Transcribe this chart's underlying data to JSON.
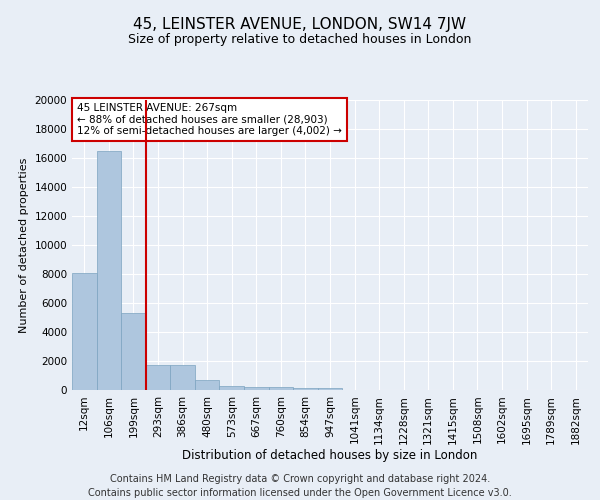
{
  "title": "45, LEINSTER AVENUE, LONDON, SW14 7JW",
  "subtitle": "Size of property relative to detached houses in London",
  "xlabel": "Distribution of detached houses by size in London",
  "ylabel": "Number of detached properties",
  "categories": [
    "12sqm",
    "106sqm",
    "199sqm",
    "293sqm",
    "386sqm",
    "480sqm",
    "573sqm",
    "667sqm",
    "760sqm",
    "854sqm",
    "947sqm",
    "1041sqm",
    "1134sqm",
    "1228sqm",
    "1321sqm",
    "1415sqm",
    "1508sqm",
    "1602sqm",
    "1695sqm",
    "1789sqm",
    "1882sqm"
  ],
  "values": [
    8100,
    16500,
    5300,
    1750,
    1750,
    700,
    300,
    200,
    175,
    150,
    125,
    0,
    0,
    0,
    0,
    0,
    0,
    0,
    0,
    0,
    0
  ],
  "bar_color": "#aec6de",
  "bar_edge_color": "#7ba3c0",
  "vline_x": 2.5,
  "vline_color": "#cc0000",
  "annotation_title": "45 LEINSTER AVENUE: 267sqm",
  "annotation_line1": "← 88% of detached houses are smaller (28,903)",
  "annotation_line2": "12% of semi-detached houses are larger (4,002) →",
  "annotation_box_color": "#ffffff",
  "annotation_box_edge": "#cc0000",
  "ylim": [
    0,
    20000
  ],
  "yticks": [
    0,
    2000,
    4000,
    6000,
    8000,
    10000,
    12000,
    14000,
    16000,
    18000,
    20000
  ],
  "footer": "Contains HM Land Registry data © Crown copyright and database right 2024.\nContains public sector information licensed under the Open Government Licence v3.0.",
  "bg_color": "#e8eef6",
  "plot_bg_color": "#e8eef6",
  "grid_color": "#ffffff",
  "title_fontsize": 11,
  "subtitle_fontsize": 9,
  "footer_fontsize": 7,
  "ylabel_fontsize": 8,
  "xlabel_fontsize": 8.5,
  "tick_fontsize": 7.5,
  "ann_fontsize": 7.5
}
